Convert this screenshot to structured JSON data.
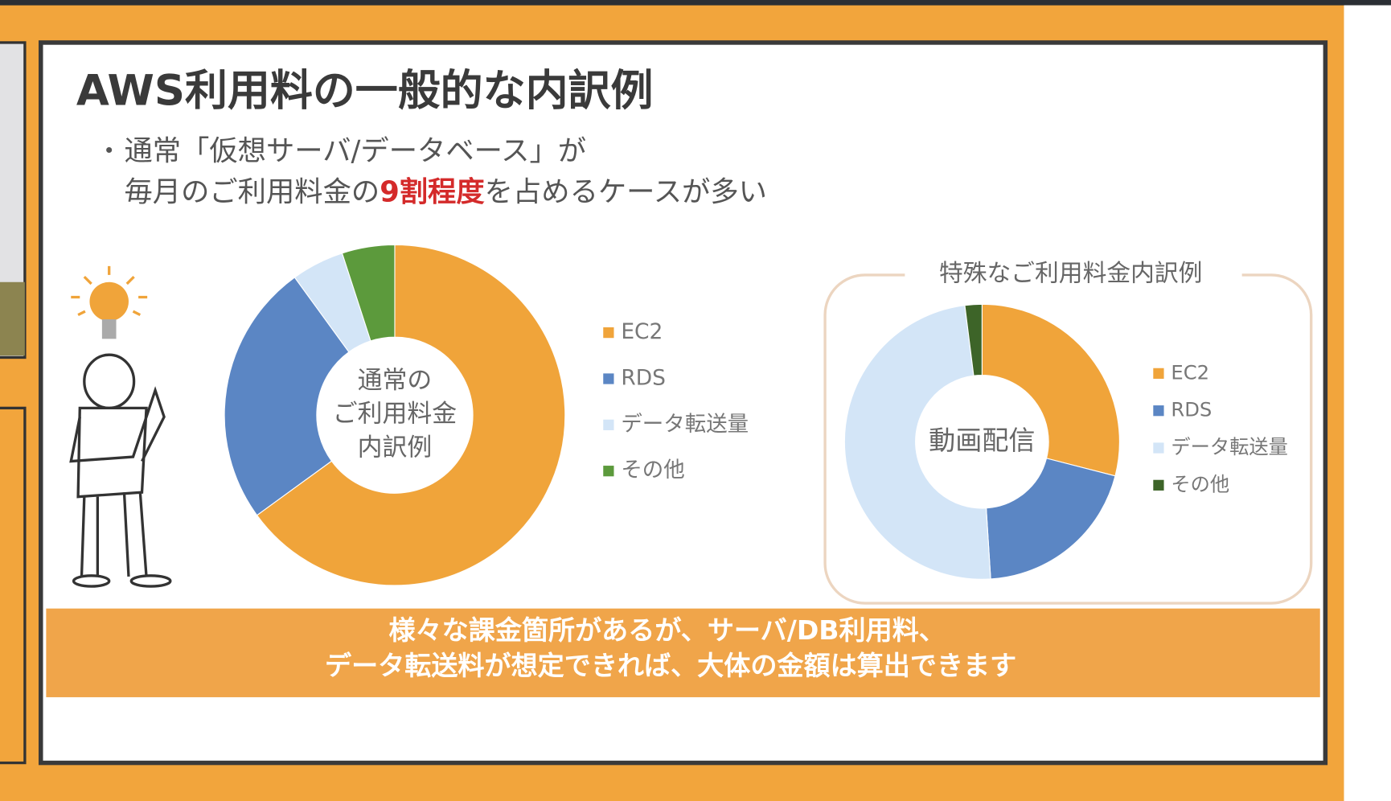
{
  "slide": {
    "title": "AWS利用料の一般的な内訳例",
    "bullet": "・",
    "bullet_line_1": "通常「仮想サーバ/データベース」が",
    "bullet_line_2": [
      "毎月のご利用料金の",
      "9割程度",
      "を占めるケースが多い"
    ],
    "footer": [
      "様々な課金箇所があるが、サーバ/DB利用料、",
      "データ転送料が想定できれば、大体の金額は算出できます"
    ]
  },
  "chart_data": [
    {
      "type": "pie",
      "center_label": [
        "通常の",
        "ご利用料金",
        "内訳例"
      ],
      "categories": [
        "EC2",
        "RDS",
        "データ転送量",
        "その他"
      ],
      "values": [
        65,
        25,
        5,
        5
      ],
      "colors": [
        "#f0a43a",
        "#5b86c4",
        "#d3e5f7",
        "#5c9a3c"
      ],
      "legend": "right"
    },
    {
      "type": "pie",
      "title": "特殊なご利用料金内訳例",
      "center_label": [
        "動画配信"
      ],
      "categories": [
        "EC2",
        "RDS",
        "データ転送量",
        "その他"
      ],
      "values": [
        29,
        20,
        49,
        2
      ],
      "colors": [
        "#f0a43a",
        "#5b86c4",
        "#d3e5f7",
        "#3d6428"
      ],
      "legend": "right"
    }
  ]
}
